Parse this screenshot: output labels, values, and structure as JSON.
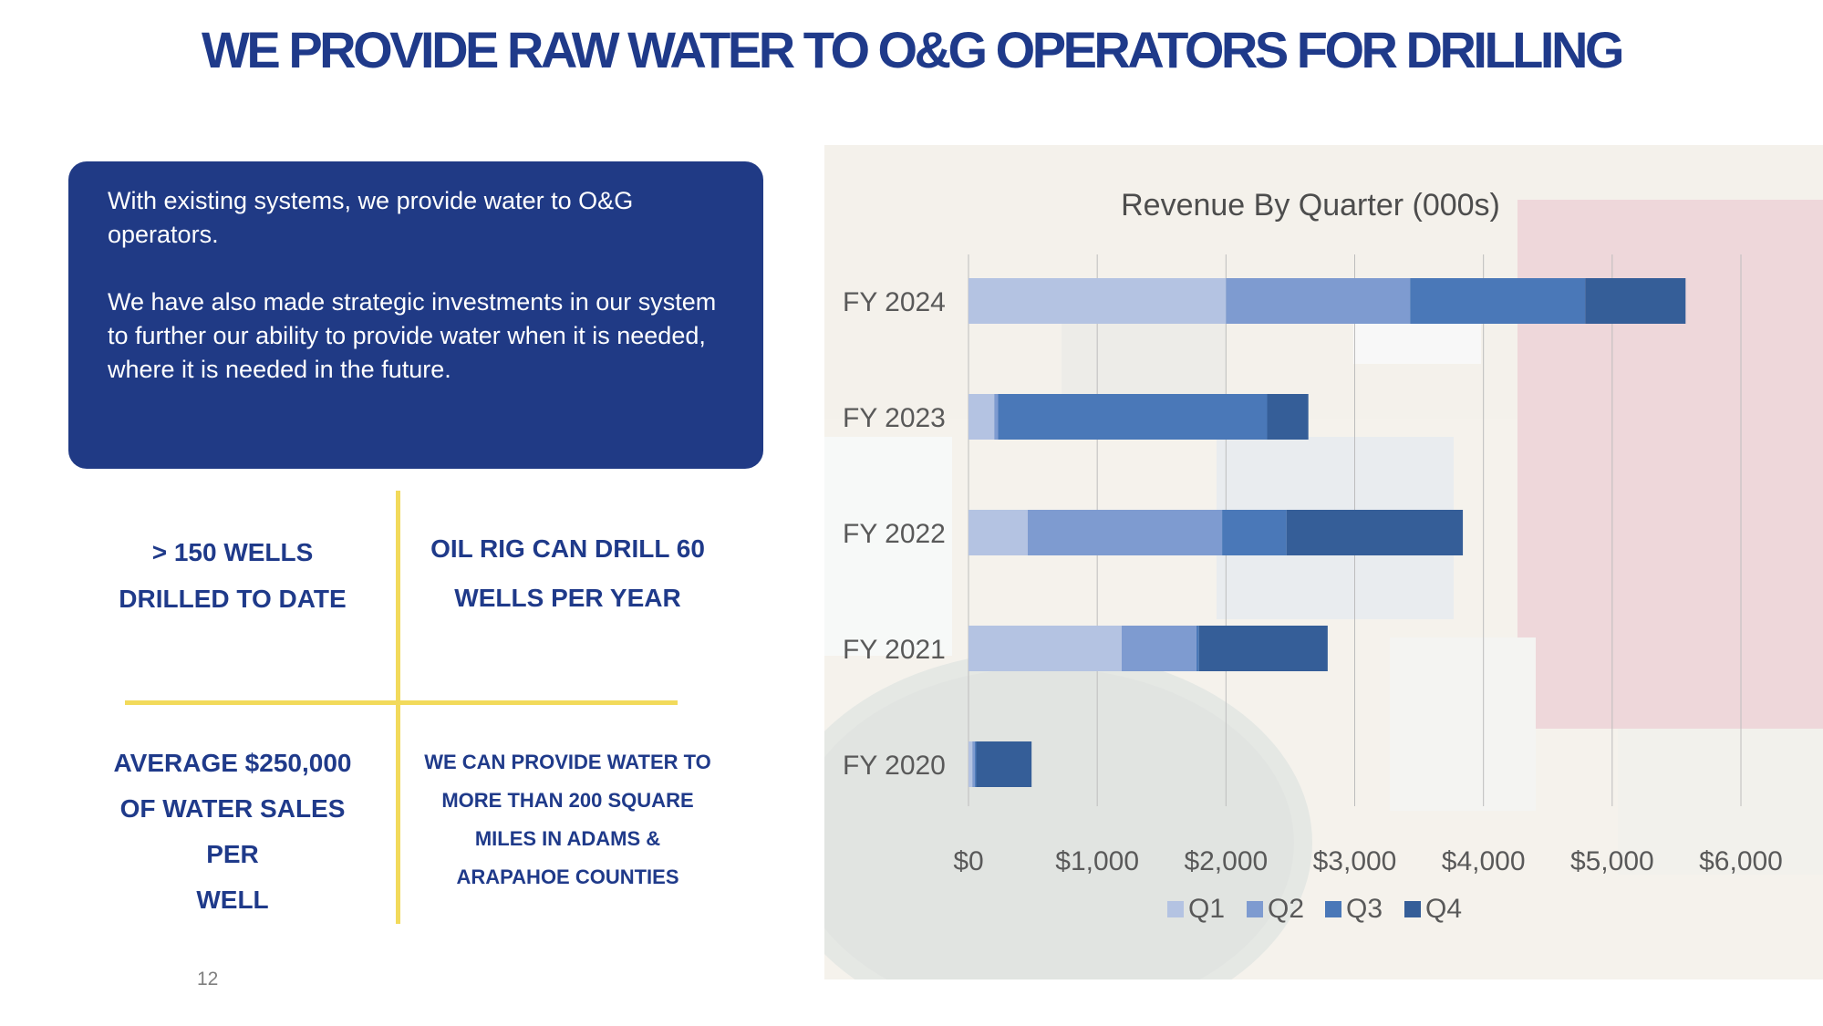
{
  "title": "WE PROVIDE RAW WATER TO O&G OPERATORS FOR DRILLING",
  "intro": {
    "p1": "With existing systems, we provide water to O&G operators.",
    "p2": "We have also made strategic investments in our system to further our ability to provide water when it is needed, where it is needed in the future."
  },
  "stats": {
    "s1": [
      "> 150 WELLS",
      "DRILLED TO DATE"
    ],
    "s2": [
      "OIL RIG CAN DRILL 60",
      "WELLS PER YEAR"
    ],
    "s3": [
      "AVERAGE $250,000",
      "OF WATER SALES PER",
      "WELL"
    ],
    "s4": [
      "WE CAN PROVIDE WATER TO",
      "MORE THAN 200 SQUARE",
      "MILES IN ADAMS &",
      "ARAPAHOE COUNTIES"
    ]
  },
  "page_number": "12",
  "colors": {
    "brand_navy": "#1f3a8a",
    "accent_yellow": "#f2da5b",
    "q1": "#b4c3e2",
    "q2": "#7e9bd0",
    "q3": "#4a78b8",
    "q4": "#355e98"
  },
  "chart_data": {
    "type": "bar",
    "orientation": "horizontal",
    "stacked": true,
    "title": "Revenue By Quarter (000s)",
    "categories": [
      "FY 2024",
      "FY 2023",
      "FY 2022",
      "FY 2021",
      "FY 2020"
    ],
    "series": [
      {
        "name": "Q1",
        "values": [
          2000,
          200,
          460,
          1190,
          30
        ]
      },
      {
        "name": "Q2",
        "values": [
          1430,
          30,
          1510,
          580,
          20
        ]
      },
      {
        "name": "Q3",
        "values": [
          1360,
          2090,
          500,
          20,
          10
        ]
      },
      {
        "name": "Q4",
        "values": [
          780,
          320,
          1370,
          1000,
          430
        ]
      }
    ],
    "xlim": [
      0,
      6000
    ],
    "x_ticks": [
      "$0",
      "$1,000",
      "$2,000",
      "$3,000",
      "$4,000",
      "$5,000",
      "$6,000"
    ],
    "legend_position": "bottom",
    "grid": true
  }
}
